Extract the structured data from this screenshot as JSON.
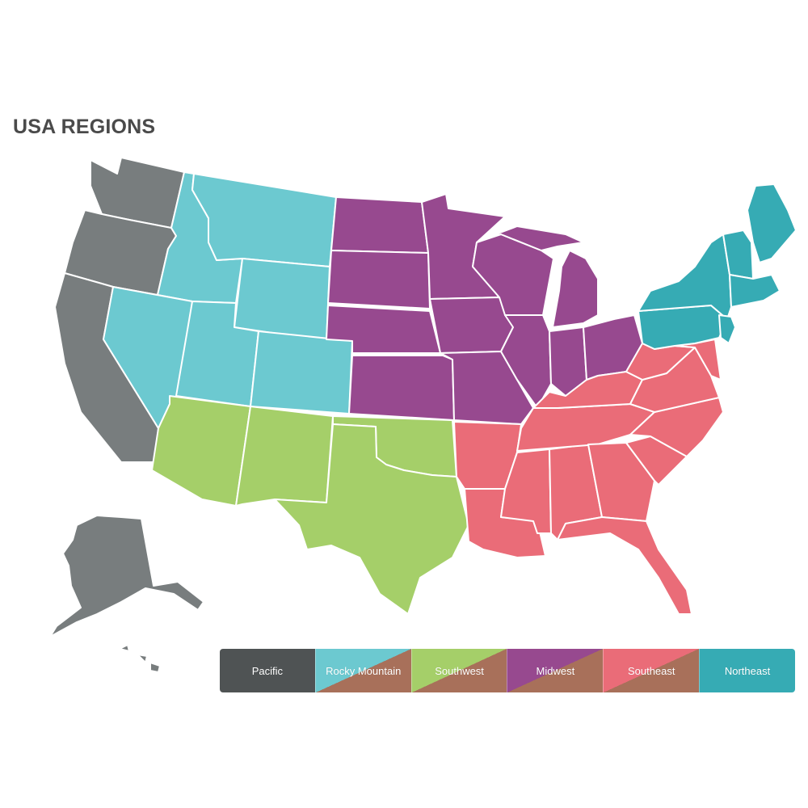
{
  "title": "USA REGIONS",
  "colors": {
    "pacific": "#787d7e",
    "rocky": "#6cc9d0",
    "southwest": "#a5cf69",
    "midwest": "#97498f",
    "southeast": "#ea6c78",
    "northeast": "#36abb4",
    "legend_pacific": "#4f5354",
    "legend_accent": "#a8705a"
  },
  "legend": [
    {
      "label": "Pacific",
      "color": "#4f5354",
      "diagonal": false
    },
    {
      "label": "Rocky Mountain",
      "color": "#6cc9d0",
      "diagonal": true
    },
    {
      "label": "Southwest",
      "color": "#a5cf69",
      "diagonal": true
    },
    {
      "label": "Midwest",
      "color": "#97498f",
      "diagonal": true
    },
    {
      "label": "Southeast",
      "color": "#ea6c78",
      "diagonal": true
    },
    {
      "label": "Northeast",
      "color": "#36abb4",
      "diagonal": false
    }
  ]
}
